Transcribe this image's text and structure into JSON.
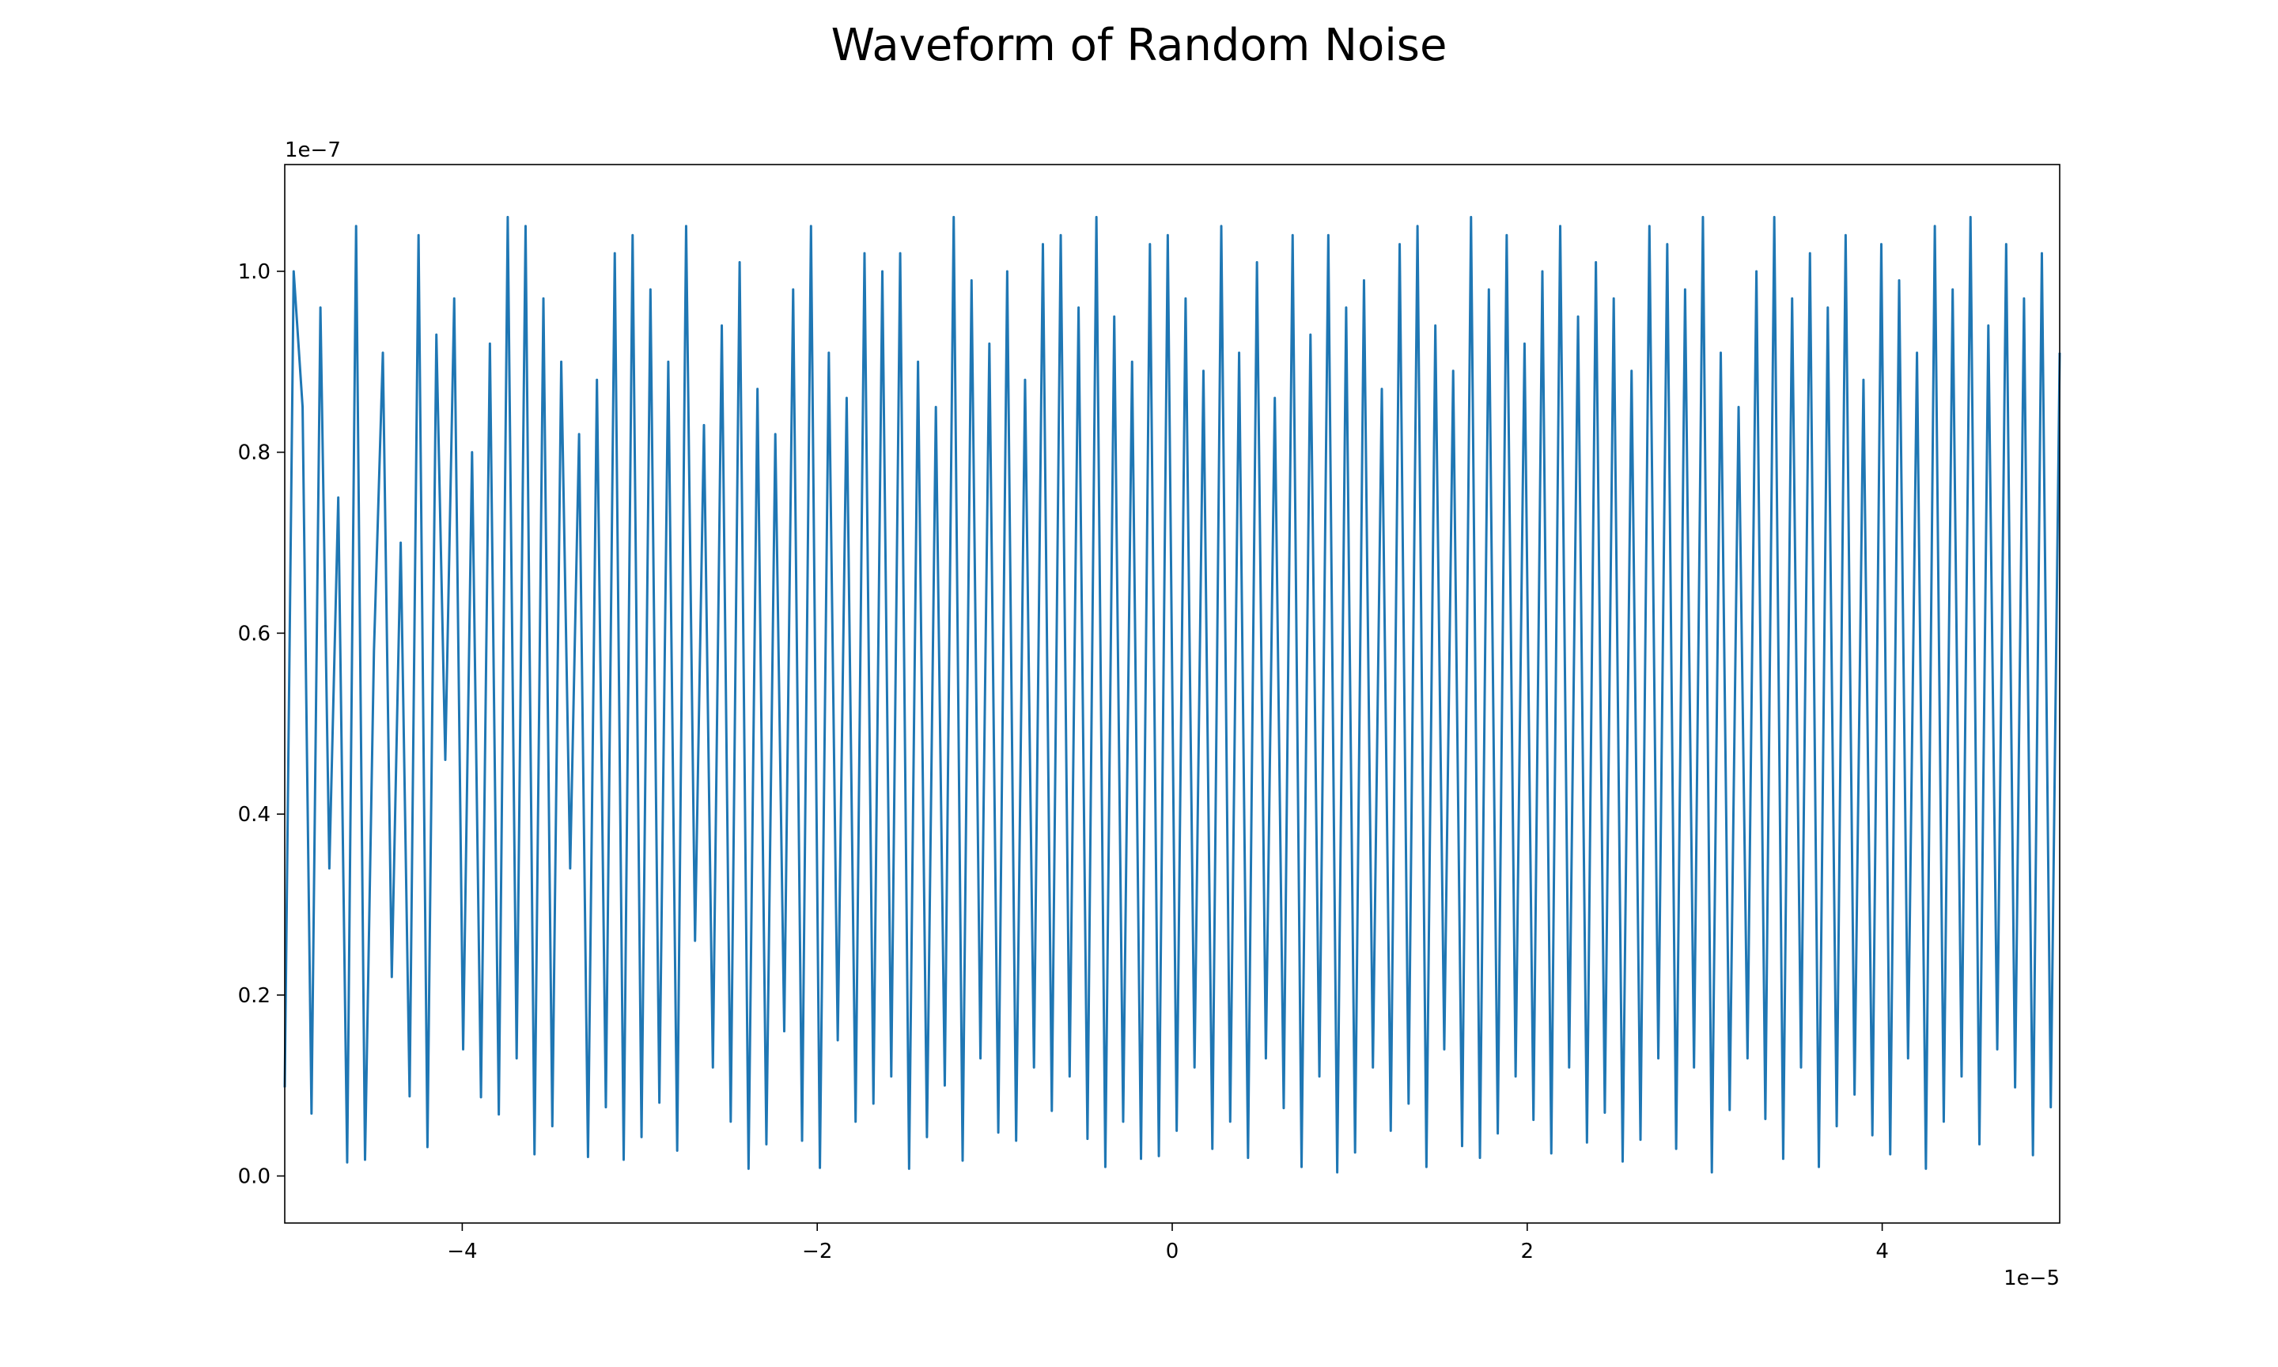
{
  "chart_data": {
    "type": "line",
    "title": "Waveform of Random Noise",
    "xlabel": "",
    "ylabel": "",
    "x_offset_label": "1e−5",
    "y_offset_label": "1e−7",
    "x_scale_exponent": -5,
    "y_scale_exponent": -7,
    "xlim": [
      -5e-05,
      5e-05
    ],
    "ylim": [
      -5.2e-09,
      1.118e-07
    ],
    "x_ticks": [
      {
        "value": -4e-05,
        "label": "−4"
      },
      {
        "value": -2e-05,
        "label": "−2"
      },
      {
        "value": 0,
        "label": "0"
      },
      {
        "value": 2e-05,
        "label": "2"
      },
      {
        "value": 4e-05,
        "label": "4"
      }
    ],
    "y_ticks": [
      {
        "value": 0,
        "label": "0.0"
      },
      {
        "value": 2e-08,
        "label": "0.2"
      },
      {
        "value": 4e-08,
        "label": "0.4"
      },
      {
        "value": 6e-08,
        "label": "0.6"
      },
      {
        "value": 8e-08,
        "label": "0.8"
      },
      {
        "value": 1e-07,
        "label": "1.0"
      }
    ],
    "grid": false,
    "legend": "none",
    "line_color": "#1f77b4",
    "series": [
      {
        "x_start": -5e-05,
        "x_end": 5e-05,
        "y": [
          9.8e-09,
          1e-07,
          8.5e-08,
          6.9e-09,
          9.6e-08,
          3.4e-08,
          7.5e-08,
          1.5e-09,
          1.05e-07,
          1.8e-09,
          5.8e-08,
          9.1e-08,
          2.2e-08,
          7e-08,
          8.8e-09,
          1.04e-07,
          3.2e-09,
          9.3e-08,
          4.6e-08,
          9.7e-08,
          1.4e-08,
          8e-08,
          8.7e-09,
          9.2e-08,
          6.8e-09,
          1.06e-07,
          1.3e-08,
          1.05e-07,
          2.4e-09,
          9.7e-08,
          5.5e-09,
          9e-08,
          3.4e-08,
          8.2e-08,
          2.1e-09,
          8.8e-08,
          7.6e-09,
          1.02e-07,
          1.8e-09,
          1.04e-07,
          4.3e-09,
          9.8e-08,
          8.1e-09,
          9e-08,
          2.8e-09,
          1.05e-07,
          2.6e-08,
          8.3e-08,
          1.2e-08,
          9.4e-08,
          6e-09,
          1.01e-07,
          8e-10,
          8.7e-08,
          3.5e-09,
          8.2e-08,
          1.6e-08,
          9.8e-08,
          3.9e-09,
          1.05e-07,
          9e-10,
          9.1e-08,
          1.5e-08,
          8.6e-08,
          6e-09,
          1.02e-07,
          8e-09,
          1e-07,
          1.1e-08,
          1.02e-07,
          8e-10,
          9e-08,
          4.3e-09,
          8.5e-08,
          1e-08,
          1.06e-07,
          1.7e-09,
          9.9e-08,
          1.3e-08,
          9.2e-08,
          4.8e-09,
          1e-07,
          3.9e-09,
          8.8e-08,
          1.2e-08,
          1.03e-07,
          7.2e-09,
          1.04e-07,
          1.1e-08,
          9.6e-08,
          4.1e-09,
          1.06e-07,
          1e-09,
          9.5e-08,
          6e-09,
          9e-08,
          1.9e-09,
          1.03e-07,
          2.2e-09,
          1.04e-07,
          5e-09,
          9.7e-08,
          1.2e-08,
          8.9e-08,
          3e-09,
          1.05e-07,
          6e-09,
          9.1e-08,
          2e-09,
          1.01e-07,
          1.3e-08,
          8.6e-08,
          7.5e-09,
          1.04e-07,
          1e-09,
          9.3e-08,
          1.1e-08,
          1.04e-07,
          4e-10,
          9.6e-08,
          2.6e-09,
          9.9e-08,
          1.2e-08,
          8.7e-08,
          5e-09,
          1.03e-07,
          8e-09,
          1.05e-07,
          1e-09,
          9.4e-08,
          1.4e-08,
          8.9e-08,
          3.3e-09,
          1.06e-07,
          2e-09,
          9.8e-08,
          4.7e-09,
          1.04e-07,
          1.1e-08,
          9.2e-08,
          6.2e-09,
          1e-07,
          2.5e-09,
          1.05e-07,
          1.2e-08,
          9.5e-08,
          3.7e-09,
          1.01e-07,
          7e-09,
          9.7e-08,
          1.6e-09,
          8.9e-08,
          4e-09,
          1.05e-07,
          1.3e-08,
          1.03e-07,
          3e-09,
          9.8e-08,
          1.2e-08,
          1.06e-07,
          4e-10,
          9.1e-08,
          7.3e-09,
          8.5e-08,
          1.3e-08,
          1e-07,
          6.3e-09,
          1.06e-07,
          1.9e-09,
          9.7e-08,
          1.2e-08,
          1.02e-07,
          1e-09,
          9.6e-08,
          5.5e-09,
          1.04e-07,
          9e-09,
          8.8e-08,
          4.5e-09,
          1.03e-07,
          2.4e-09,
          9.9e-08,
          1.3e-08,
          9.1e-08,
          8e-10,
          1.05e-07,
          6e-09,
          9.8e-08,
          1.1e-08,
          1.06e-07,
          3.5e-09,
          9.4e-08,
          1.4e-08,
          1.03e-07,
          9.8e-09,
          9.7e-08,
          2.3e-09,
          1.02e-07,
          7.6e-09,
          9.1e-08
        ]
      }
    ]
  }
}
